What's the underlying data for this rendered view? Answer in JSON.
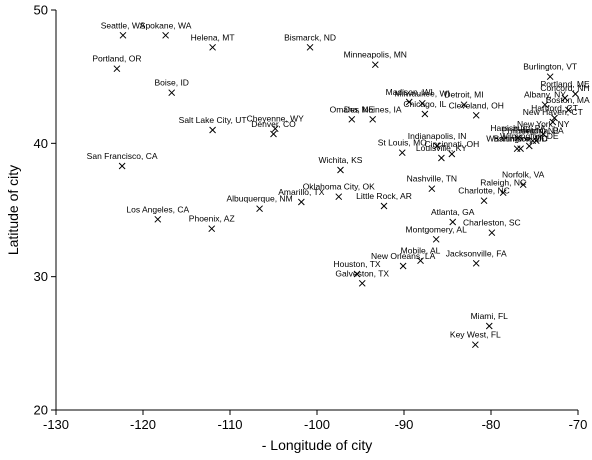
{
  "chart_data": {
    "type": "scatter",
    "title": "",
    "xlabel": "- Longitude of city",
    "ylabel": "Latitude of city",
    "xlim": [
      -130,
      -70
    ],
    "ylim": [
      20,
      50
    ],
    "xticks": [
      -130,
      -120,
      -110,
      -100,
      -90,
      -80,
      -70
    ],
    "yticks": [
      20,
      30,
      40,
      50
    ],
    "xtick_labels": [
      "-130",
      "-120",
      "-110",
      "-100",
      "-90",
      "-80",
      "-70"
    ],
    "ytick_labels": [
      "20",
      "30",
      "40",
      "50"
    ],
    "grid": false,
    "marker": "x",
    "points": [
      {
        "label": "Seattle, WA",
        "x": -122.3,
        "y": 48.1
      },
      {
        "label": "Spokane, WA",
        "x": -117.4,
        "y": 48.1
      },
      {
        "label": "Helena, MT",
        "x": -112.0,
        "y": 47.2
      },
      {
        "label": "Bismarck, ND",
        "x": -100.8,
        "y": 47.2
      },
      {
        "label": "Portland, OR",
        "x": -123.0,
        "y": 45.6
      },
      {
        "label": "Minneapolis, MN",
        "x": -93.3,
        "y": 45.9
      },
      {
        "label": "Burlington, VT",
        "x": -73.2,
        "y": 45.0
      },
      {
        "label": "Portland, ME",
        "x": -70.3,
        "y": 43.7
      },
      {
        "label": "Boise, ID",
        "x": -116.7,
        "y": 43.8
      },
      {
        "label": "Concord, NH",
        "x": -71.5,
        "y": 43.4
      },
      {
        "label": "Madison, WI",
        "x": -89.4,
        "y": 43.1
      },
      {
        "label": "Milwaukee, WI",
        "x": -87.9,
        "y": 43.0
      },
      {
        "label": "Detroit, MI",
        "x": -83.1,
        "y": 42.9
      },
      {
        "label": "Albany, NY",
        "x": -73.8,
        "y": 42.9
      },
      {
        "label": "Boston, MA",
        "x": -71.1,
        "y": 42.5
      },
      {
        "label": "Omaha, NE",
        "x": -96.0,
        "y": 41.8
      },
      {
        "label": "Des Moines, IA",
        "x": -93.6,
        "y": 41.8
      },
      {
        "label": "Chicago, IL",
        "x": -87.6,
        "y": 42.2
      },
      {
        "label": "Cleveland, OH",
        "x": -81.7,
        "y": 42.1
      },
      {
        "label": "New Haven, CT",
        "x": -72.9,
        "y": 41.6
      },
      {
        "label": "Hartford, CT",
        "x": -72.7,
        "y": 41.9
      },
      {
        "label": "Harrisburg, PA",
        "x": -76.9,
        "y": 40.4
      },
      {
        "label": "Philadelphia, PA",
        "x": -75.2,
        "y": 40.2
      },
      {
        "label": "New York, NY",
        "x": -74.0,
        "y": 40.7
      },
      {
        "label": "Salt Lake City, UT",
        "x": -112.0,
        "y": 41.0
      },
      {
        "label": "Cheyenne, WY",
        "x": -104.8,
        "y": 41.1
      },
      {
        "label": "Denver, CO",
        "x": -105.0,
        "y": 40.7
      },
      {
        "label": "Wilmington, DE",
        "x": -75.6,
        "y": 39.8
      },
      {
        "label": "Trenton, NJ",
        "x": -74.8,
        "y": 40.2
      },
      {
        "label": "Baltimore, MD",
        "x": -76.6,
        "y": 39.6
      },
      {
        "label": "Washington, DC",
        "x": -77.0,
        "y": 39.6
      },
      {
        "label": "Indianapolis, IN",
        "x": -86.2,
        "y": 39.8
      },
      {
        "label": "St Louis, MO",
        "x": -90.2,
        "y": 39.3
      },
      {
        "label": "Cincinnati, OH",
        "x": -84.5,
        "y": 39.2
      },
      {
        "label": "Louisville, KY",
        "x": -85.7,
        "y": 38.9
      },
      {
        "label": "San Francisco, CA",
        "x": -122.4,
        "y": 38.3
      },
      {
        "label": "Wichita, KS",
        "x": -97.3,
        "y": 38.0
      },
      {
        "label": "Norfolk, VA",
        "x": -76.3,
        "y": 36.9
      },
      {
        "label": "Nashville, TN",
        "x": -86.8,
        "y": 36.6
      },
      {
        "label": "Raleigh, NC",
        "x": -78.6,
        "y": 36.3
      },
      {
        "label": "Charlotte, NC",
        "x": -80.8,
        "y": 35.7
      },
      {
        "label": "Albuquerque, NM",
        "x": -106.6,
        "y": 35.1
      },
      {
        "label": "Amarillo, TX",
        "x": -101.8,
        "y": 35.6
      },
      {
        "label": "Oklahoma City, OK",
        "x": -97.5,
        "y": 36.0
      },
      {
        "label": "Little Rock, AR",
        "x": -92.3,
        "y": 35.3
      },
      {
        "label": "Los Angeles, CA",
        "x": -118.3,
        "y": 34.3
      },
      {
        "label": "Phoenix, AZ",
        "x": -112.1,
        "y": 33.6
      },
      {
        "label": "Atlanta, GA",
        "x": -84.4,
        "y": 34.1
      },
      {
        "label": "Charleston, SC",
        "x": -79.9,
        "y": 33.3
      },
      {
        "label": "Montgomery, AL",
        "x": -86.3,
        "y": 32.8
      },
      {
        "label": "Mobile, AL",
        "x": -88.1,
        "y": 31.2
      },
      {
        "label": "Jacksonville, FA",
        "x": -81.7,
        "y": 31.0
      },
      {
        "label": "New Orleans, LA",
        "x": -90.1,
        "y": 30.8
      },
      {
        "label": "Houston, TX",
        "x": -95.4,
        "y": 30.2
      },
      {
        "label": "Galveston, TX",
        "x": -94.8,
        "y": 29.5
      },
      {
        "label": "Miami, FL",
        "x": -80.2,
        "y": 26.3
      },
      {
        "label": "Key West, FL",
        "x": -81.8,
        "y": 24.9
      }
    ]
  }
}
